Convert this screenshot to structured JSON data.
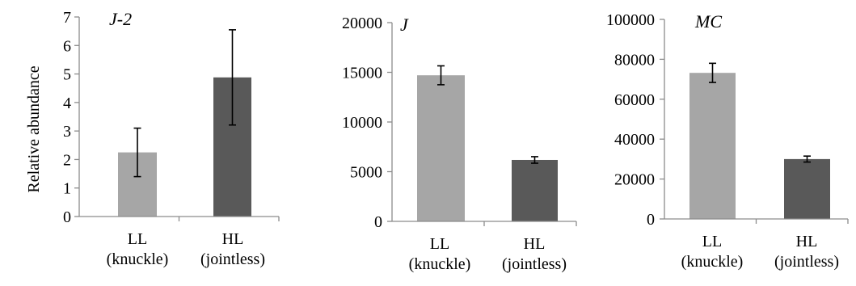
{
  "y_axis_label": "Relative abundance",
  "chart_data": [
    {
      "type": "bar",
      "title": "J-2",
      "categories": [
        [
          "LL",
          "(knuckle)"
        ],
        [
          "HL",
          "(jointless)"
        ]
      ],
      "values": [
        2.25,
        4.88
      ],
      "errors": [
        0.85,
        1.67
      ],
      "ylim": [
        0,
        7
      ],
      "yticks": [
        0,
        1,
        2,
        3,
        4,
        5,
        6,
        7
      ],
      "ytick_labels": [
        "0",
        "1",
        "2",
        "3",
        "4",
        "5",
        "6",
        "7"
      ],
      "colors": [
        "#a6a6a6",
        "#595959"
      ],
      "ylabel": "Relative abundance",
      "grid": false
    },
    {
      "type": "bar",
      "title": "J",
      "categories": [
        [
          "LL",
          "(knuckle)"
        ],
        [
          "HL",
          "(jointless)"
        ]
      ],
      "values": [
        14700,
        6180
      ],
      "errors": [
        950,
        330
      ],
      "ylim": [
        0,
        20000
      ],
      "yticks": [
        0,
        5000,
        10000,
        15000,
        20000
      ],
      "ytick_labels": [
        "0",
        "5000",
        "10000",
        "15000",
        "20000"
      ],
      "colors": [
        "#a6a6a6",
        "#595959"
      ],
      "grid": false
    },
    {
      "type": "bar",
      "title": "MC",
      "categories": [
        [
          "LL",
          "(knuckle)"
        ],
        [
          "HL",
          "(jointless)"
        ]
      ],
      "values": [
        73200,
        30000
      ],
      "errors": [
        4800,
        1500
      ],
      "ylim": [
        0,
        100000
      ],
      "yticks": [
        0,
        20000,
        40000,
        60000,
        80000,
        100000
      ],
      "ytick_labels": [
        "0",
        "20000",
        "40000",
        "60000",
        "80000",
        "100000"
      ],
      "colors": [
        "#a6a6a6",
        "#595959"
      ],
      "grid": false
    }
  ]
}
